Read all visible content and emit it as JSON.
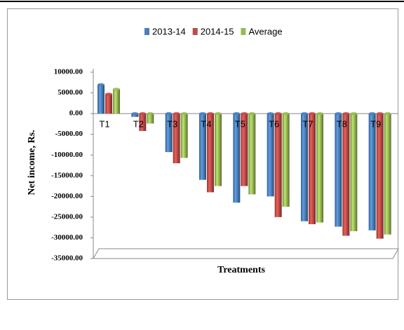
{
  "chart_data": {
    "type": "bar",
    "ylabel": "Net income, Rs.",
    "xlabel": "Treatments",
    "categories": [
      "T1",
      "T2",
      "T3",
      "T4",
      "T5",
      "T6",
      "T7",
      "T8",
      "T9"
    ],
    "series": [
      {
        "name": "2013-14",
        "color": "#4a7ebb",
        "values": [
          7000,
          -800,
          -9300,
          -16000,
          -21500,
          -20000,
          -26000,
          -27300,
          -28200
        ]
      },
      {
        "name": "2014-15",
        "color": "#be4b48",
        "values": [
          4700,
          -4200,
          -12000,
          -19000,
          -17500,
          -25000,
          -26700,
          -29500,
          -30200
        ]
      },
      {
        "name": "Average",
        "color": "#98b954",
        "values": [
          5900,
          -2400,
          -10700,
          -17500,
          -19500,
          -22500,
          -26300,
          -28400,
          -29200
        ]
      }
    ],
    "ylim": [
      -35000,
      10000
    ],
    "yticks": [
      {
        "value": -35000,
        "label": "-35000.00"
      },
      {
        "value": -30000,
        "label": "-30000.00"
      },
      {
        "value": -25000,
        "label": "-25000.00"
      },
      {
        "value": -20000,
        "label": "-20000.00"
      },
      {
        "value": -15000,
        "label": "-15000.00"
      },
      {
        "value": -10000,
        "label": "-10000.00"
      },
      {
        "value": -5000,
        "label": "-5000.00"
      },
      {
        "value": 0,
        "label": "0.00"
      },
      {
        "value": 5000,
        "label": "5000.00"
      },
      {
        "value": 10000,
        "label": "10000.00"
      }
    ],
    "legend": "top"
  }
}
